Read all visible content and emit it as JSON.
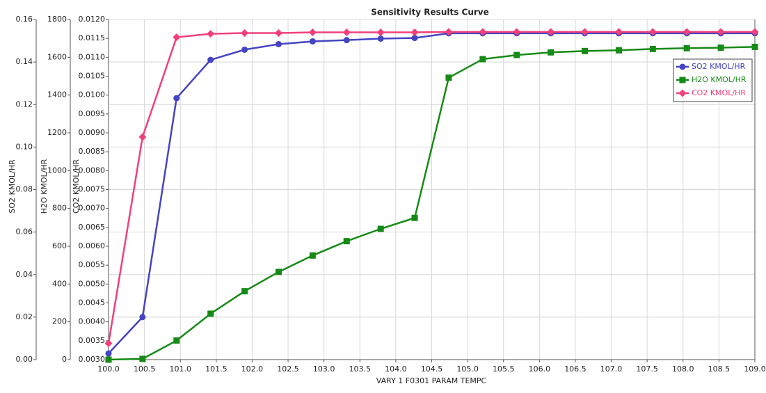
{
  "chart_data": {
    "type": "line",
    "title": "Sensitivity Results Curve",
    "xlabel": "VARY   1 F0301 PARAM TEMPC",
    "ylabel": "SO2 KMOL/HR",
    "y2label": "H2O KMOL/HR",
    "y3label": "CO2 KMOL/HR",
    "x": [
      100,
      100.4737,
      100.9474,
      101.4211,
      101.8947,
      102.3684,
      102.8421,
      103.3158,
      103.7895,
      104.2632,
      104.7368,
      105.2105,
      105.6842,
      106.1579,
      106.6316,
      107.1053,
      107.5789,
      108.0526,
      108.5263,
      109
    ],
    "series": [
      {
        "name": "SO2 KMOL/HR",
        "color": "#4444c4",
        "marker": "circle",
        "axis": "y",
        "values": [
          0.0029,
          0.02,
          0.123,
          0.141,
          0.1458,
          0.1484,
          0.1497,
          0.1503,
          0.151,
          0.1513,
          0.1535,
          0.1535,
          0.1535,
          0.1535,
          0.1535,
          0.1535,
          0.1535,
          0.1535,
          0.1535,
          0.1535
        ]
      },
      {
        "name": "H2O KMOL/HR",
        "color": "#168a16",
        "marker": "square",
        "axis": "y2",
        "values": [
          0,
          4,
          101,
          243,
          362,
          464,
          551,
          627,
          692,
          750,
          1492,
          1590,
          1612,
          1626,
          1633,
          1637,
          1644,
          1648,
          1651,
          1655
        ]
      },
      {
        "name": "CO2 KMOL/HR",
        "color": "#f0407a",
        "marker": "diamond",
        "axis": "y3",
        "values": [
          0.00343,
          0.00889,
          0.01153,
          0.01162,
          0.01164,
          0.01164,
          0.01166,
          0.01166,
          0.01166,
          0.01166,
          0.01167,
          0.01167,
          0.01167,
          0.01167,
          0.01167,
          0.01167,
          0.01167,
          0.01167,
          0.01167,
          0.01167
        ]
      }
    ],
    "xlim": [
      100,
      109
    ],
    "xticks": [
      {
        "value": 100,
        "label": "100.0"
      },
      {
        "value": 100.5,
        "label": "100.5"
      },
      {
        "value": 101,
        "label": "101.0"
      },
      {
        "value": 101.5,
        "label": "101.5"
      },
      {
        "value": 102,
        "label": "102.0"
      },
      {
        "value": 102.5,
        "label": "102.5"
      },
      {
        "value": 103,
        "label": "103.0"
      },
      {
        "value": 103.5,
        "label": "103.5"
      },
      {
        "value": 104,
        "label": "104.0"
      },
      {
        "value": 104.5,
        "label": "104.5"
      },
      {
        "value": 105,
        "label": "105.0"
      },
      {
        "value": 105.5,
        "label": "105.5"
      },
      {
        "value": 106,
        "label": "106.0"
      },
      {
        "value": 106.5,
        "label": "106.5"
      },
      {
        "value": 107,
        "label": "107.0"
      },
      {
        "value": 107.5,
        "label": "107.5"
      },
      {
        "value": 108,
        "label": "108.0"
      },
      {
        "value": 108.5,
        "label": "108.5"
      },
      {
        "value": 109,
        "label": "109.0"
      }
    ],
    "ylim": [
      0,
      0.16
    ],
    "yticks": [
      {
        "value": 0,
        "label": "0.00"
      },
      {
        "value": 0.02,
        "label": "0.02"
      },
      {
        "value": 0.04,
        "label": "0.04"
      },
      {
        "value": 0.06,
        "label": "0.06"
      },
      {
        "value": 0.08,
        "label": "0.08"
      },
      {
        "value": 0.1,
        "label": "0.10"
      },
      {
        "value": 0.12,
        "label": "0.12"
      },
      {
        "value": 0.14,
        "label": "0.14"
      },
      {
        "value": 0.16,
        "label": "0.16"
      }
    ],
    "y2lim": [
      0,
      1800
    ],
    "y2ticks": [
      0,
      200,
      400,
      600,
      800,
      1000,
      1200,
      1400,
      1600,
      1800
    ],
    "y3lim": [
      0.003,
      0.012
    ],
    "y3ticks": [
      {
        "value": 0.003,
        "label": "0.0030"
      },
      {
        "value": 0.0035,
        "label": "0.0035"
      },
      {
        "value": 0.004,
        "label": "0.0040"
      },
      {
        "value": 0.0045,
        "label": "0.0045"
      },
      {
        "value": 0.005,
        "label": "0.0050"
      },
      {
        "value": 0.0055,
        "label": "0.0055"
      },
      {
        "value": 0.006,
        "label": "0.0060"
      },
      {
        "value": 0.0065,
        "label": "0.0065"
      },
      {
        "value": 0.007,
        "label": "0.0070"
      },
      {
        "value": 0.0075,
        "label": "0.0075"
      },
      {
        "value": 0.008,
        "label": "0.0080"
      },
      {
        "value": 0.0085,
        "label": "0.0085"
      },
      {
        "value": 0.009,
        "label": "0.0090"
      },
      {
        "value": 0.0095,
        "label": "0.0095"
      },
      {
        "value": 0.01,
        "label": "0.0100"
      },
      {
        "value": 0.0105,
        "label": "0.0105"
      },
      {
        "value": 0.011,
        "label": "0.0110"
      },
      {
        "value": 0.0115,
        "label": "0.0115"
      },
      {
        "value": 0.012,
        "label": "0.0120"
      }
    ],
    "grid": true,
    "legend": "upper right"
  }
}
